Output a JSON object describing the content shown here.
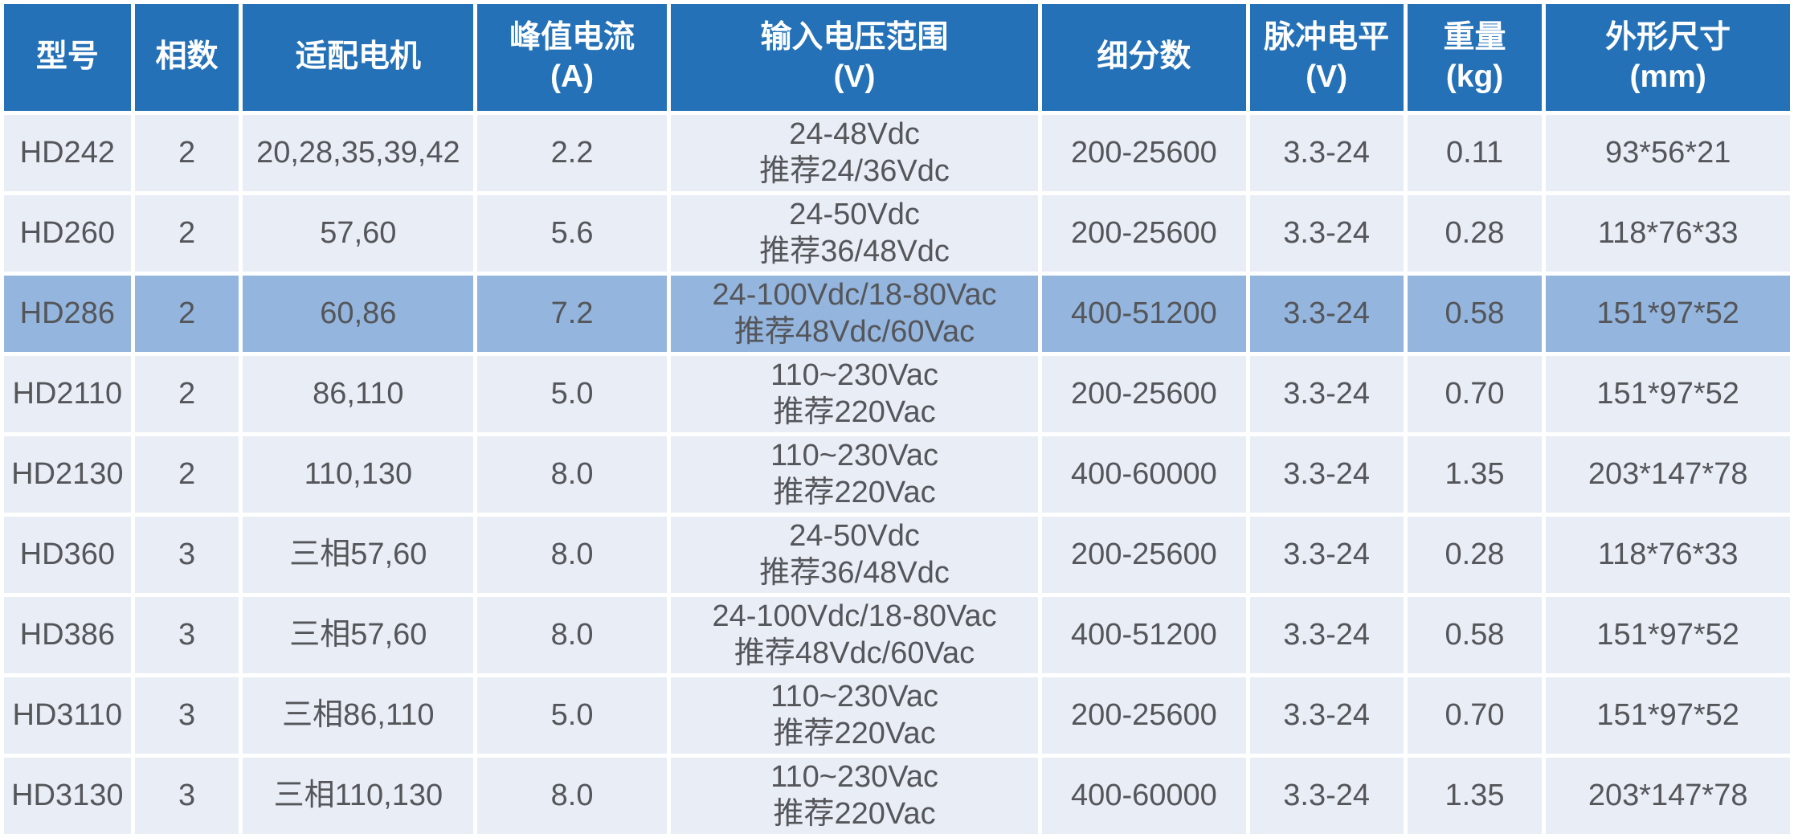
{
  "colors": {
    "header_bg": "#2471b7",
    "header_text": "#ffffff",
    "row_bg": "#e9edf6",
    "highlight_row_bg": "#94b5de",
    "cell_text": "#54565a",
    "separator": "#ffffff"
  },
  "chart_data": {
    "type": "table",
    "legend_position": "none",
    "grid": "white separators between all cells",
    "columns": [
      {
        "id": "model",
        "label": "型号"
      },
      {
        "id": "phases",
        "label": "相数"
      },
      {
        "id": "motor",
        "label": "适配电机"
      },
      {
        "id": "peak-current",
        "label": "峰值电流\n(A)"
      },
      {
        "id": "voltage-range",
        "label": "输入电压范围\n(V)"
      },
      {
        "id": "microstep",
        "label": "细分数"
      },
      {
        "id": "pulse-level",
        "label": "脉冲电平\n(V)"
      },
      {
        "id": "weight",
        "label": "重量\n(kg)"
      },
      {
        "id": "dimensions",
        "label": "外形尺寸\n(mm)"
      }
    ],
    "rows": [
      {
        "highlighted": false,
        "cells": [
          "HD242",
          "2",
          "20,28,35,39,42",
          "2.2",
          "24-48Vdc\n推荐24/36Vdc",
          "200-25600",
          "3.3-24",
          "0.11",
          "93*56*21"
        ]
      },
      {
        "highlighted": false,
        "cells": [
          "HD260",
          "2",
          "57,60",
          "5.6",
          "24-50Vdc\n推荐36/48Vdc",
          "200-25600",
          "3.3-24",
          "0.28",
          "118*76*33"
        ]
      },
      {
        "highlighted": true,
        "cells": [
          "HD286",
          "2",
          "60,86",
          "7.2",
          "24-100Vdc/18-80Vac\n推荐48Vdc/60Vac",
          "400-51200",
          "3.3-24",
          "0.58",
          "151*97*52"
        ]
      },
      {
        "highlighted": false,
        "cells": [
          "HD2110",
          "2",
          "86,110",
          "5.0",
          "110~230Vac\n推荐220Vac",
          "200-25600",
          "3.3-24",
          "0.70",
          "151*97*52"
        ]
      },
      {
        "highlighted": false,
        "cells": [
          "HD2130",
          "2",
          "110,130",
          "8.0",
          "110~230Vac\n推荐220Vac",
          "400-60000",
          "3.3-24",
          "1.35",
          "203*147*78"
        ]
      },
      {
        "highlighted": false,
        "cells": [
          "HD360",
          "3",
          "三相57,60",
          "8.0",
          "24-50Vdc\n推荐36/48Vdc",
          "200-25600",
          "3.3-24",
          "0.28",
          "118*76*33"
        ]
      },
      {
        "highlighted": false,
        "cells": [
          "HD386",
          "3",
          "三相57,60",
          "8.0",
          "24-100Vdc/18-80Vac\n推荐48Vdc/60Vac",
          "400-51200",
          "3.3-24",
          "0.58",
          "151*97*52"
        ]
      },
      {
        "highlighted": false,
        "cells": [
          "HD3110",
          "3",
          "三相86,110",
          "5.0",
          "110~230Vac\n推荐220Vac",
          "200-25600",
          "3.3-24",
          "0.70",
          "151*97*52"
        ]
      },
      {
        "highlighted": false,
        "cells": [
          "HD3130",
          "3",
          "三相110,130",
          "8.0",
          "110~230Vac\n推荐220Vac",
          "400-60000",
          "3.3-24",
          "1.35",
          "203*147*78"
        ]
      }
    ]
  }
}
